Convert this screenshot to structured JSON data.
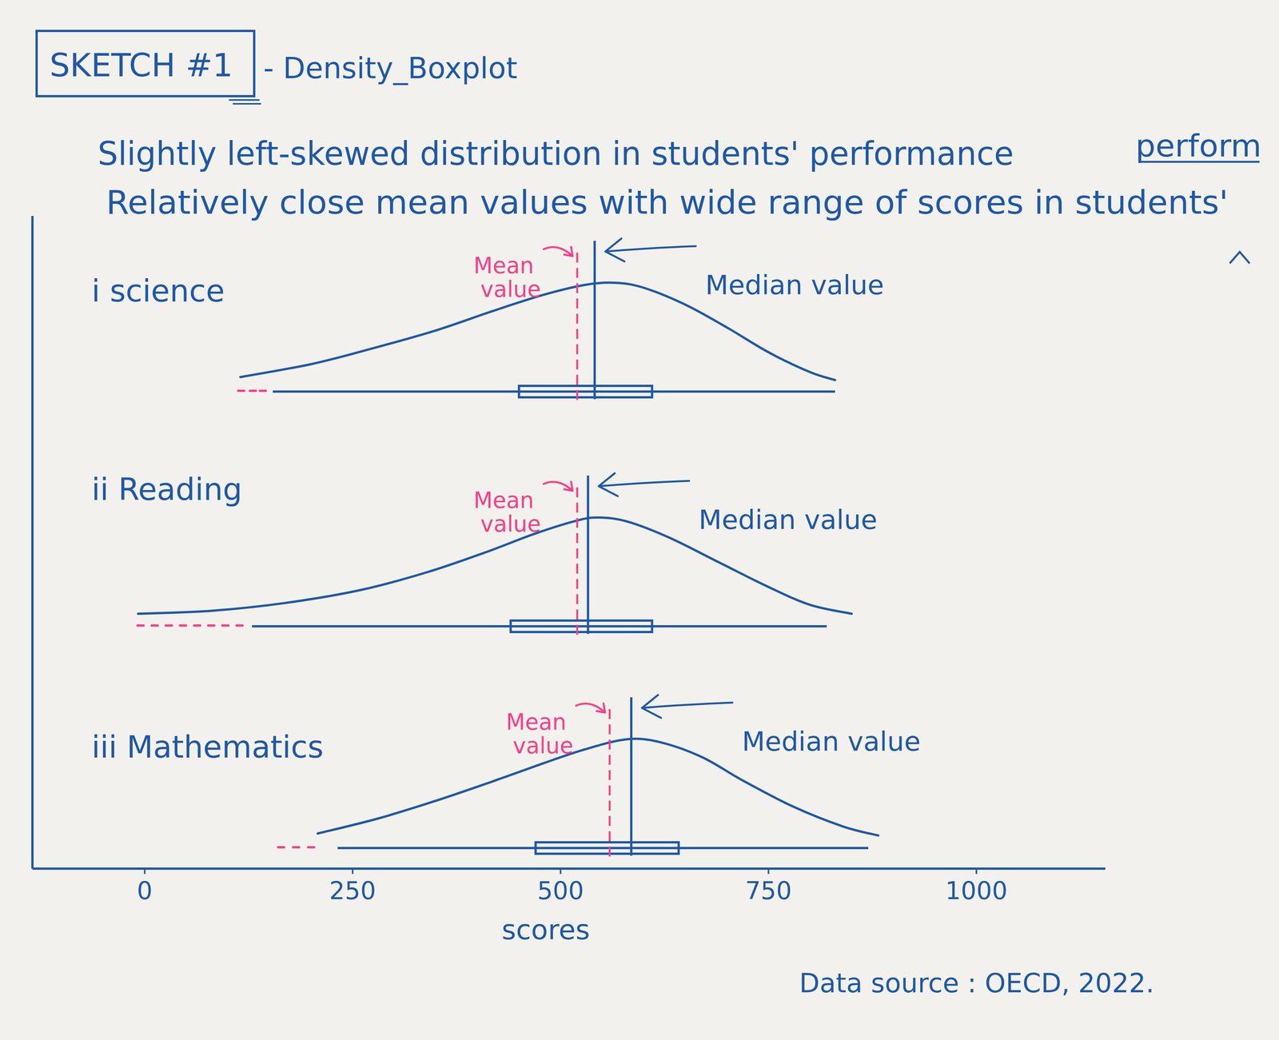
{
  "chart_data": {
    "type": "density_boxplot",
    "title": "SKETCH #1",
    "subtitle": "- Density_Boxplot",
    "annotations": [
      "Slightly left-skewed distribution in students' performance",
      "Relatively close mean values with wide range of scores in students'",
      "perform"
    ],
    "mean_label": "Mean value",
    "median_label": "Median value",
    "xlabel": "scores",
    "source": "Data source : OECD, 2022.",
    "xlim": [
      -135,
      1155
    ],
    "xticks": [
      0,
      250,
      500,
      750,
      1000
    ],
    "ylim": [
      0,
      1
    ],
    "tick_labels": "x",
    "series": [
      {
        "name": "i science",
        "color": "#1f58a8",
        "density_x": [
          115,
          200,
          270,
          350,
          420,
          480,
          530,
          566,
          600,
          650,
          700,
          750,
          800,
          830
        ],
        "density": [
          0.05,
          0.18,
          0.33,
          0.52,
          0.72,
          0.88,
          0.98,
          1.0,
          0.95,
          0.78,
          0.55,
          0.3,
          0.1,
          0.02
        ],
        "min": 154,
        "q1": 450,
        "median": 541,
        "q3": 610,
        "max": 830,
        "mean": 520,
        "outliers": [
          116,
          130,
          142
        ]
      },
      {
        "name": "ii Reading",
        "color": "#1f58a8",
        "density_x": [
          -8,
          80,
          170,
          260,
          340,
          410,
          470,
          520,
          546,
          580,
          630,
          690,
          750,
          800,
          850
        ],
        "density": [
          0.03,
          0.06,
          0.14,
          0.27,
          0.45,
          0.65,
          0.84,
          0.97,
          1.0,
          0.96,
          0.8,
          0.55,
          0.3,
          0.12,
          0.03
        ],
        "min": 129,
        "q1": 440,
        "median": 533,
        "q3": 610,
        "max": 820,
        "mean": 520,
        "outliers": [
          -5,
          12,
          29,
          46,
          63,
          80,
          97,
          114
        ]
      },
      {
        "name": "iii Mathematics",
        "color": "#1f58a8",
        "density_x": [
          208,
          280,
          350,
          420,
          480,
          530,
          580,
          620,
          670,
          720,
          780,
          840,
          882
        ],
        "density": [
          0.05,
          0.2,
          0.38,
          0.58,
          0.76,
          0.9,
          1.0,
          0.97,
          0.82,
          0.58,
          0.32,
          0.12,
          0.03
        ],
        "min": 232,
        "q1": 470,
        "median": 585,
        "q3": 642,
        "max": 870,
        "mean": 559,
        "outliers": [
          164,
          182,
          200
        ]
      }
    ]
  }
}
